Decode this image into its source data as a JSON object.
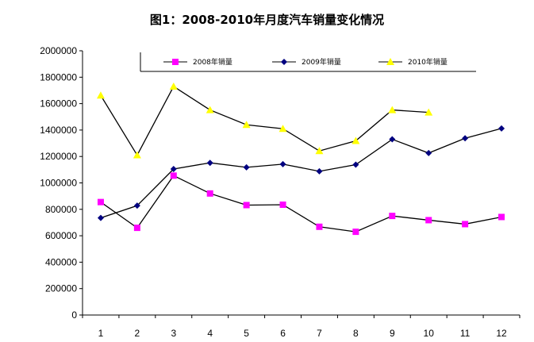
{
  "chart_data": {
    "type": "line",
    "title": "图1：2008-2010年月度汽车销量变化情况",
    "xlabel": "",
    "ylabel": "",
    "categories": [
      "1",
      "2",
      "3",
      "4",
      "5",
      "6",
      "7",
      "8",
      "9",
      "10",
      "11",
      "12"
    ],
    "ylim": [
      0,
      2000000
    ],
    "yticks": [
      "0",
      "200000",
      "400000",
      "600000",
      "800000",
      "1000000",
      "1200000",
      "1400000",
      "1600000",
      "1800000",
      "2000000"
    ],
    "grid": false,
    "legend_position": "top",
    "series": [
      {
        "name": "2008年销量",
        "color": "#ff00ff",
        "marker": "square",
        "values": [
          855000,
          660000,
          1055000,
          920000,
          832000,
          835000,
          668000,
          630000,
          750000,
          718000,
          688000,
          742000
        ]
      },
      {
        "name": "2009年销量",
        "color": "#000080",
        "marker": "diamond",
        "values": [
          735000,
          828000,
          1105000,
          1152000,
          1118000,
          1142000,
          1088000,
          1138000,
          1330000,
          1226000,
          1338000,
          1412000
        ]
      },
      {
        "name": "2010年销量",
        "color": "#ffff00",
        "marker": "triangle",
        "values": [
          1662000,
          1210000,
          1730000,
          1552000,
          1440000,
          1410000,
          1242000,
          1318000,
          1552000,
          1534000,
          null,
          null
        ]
      }
    ]
  }
}
